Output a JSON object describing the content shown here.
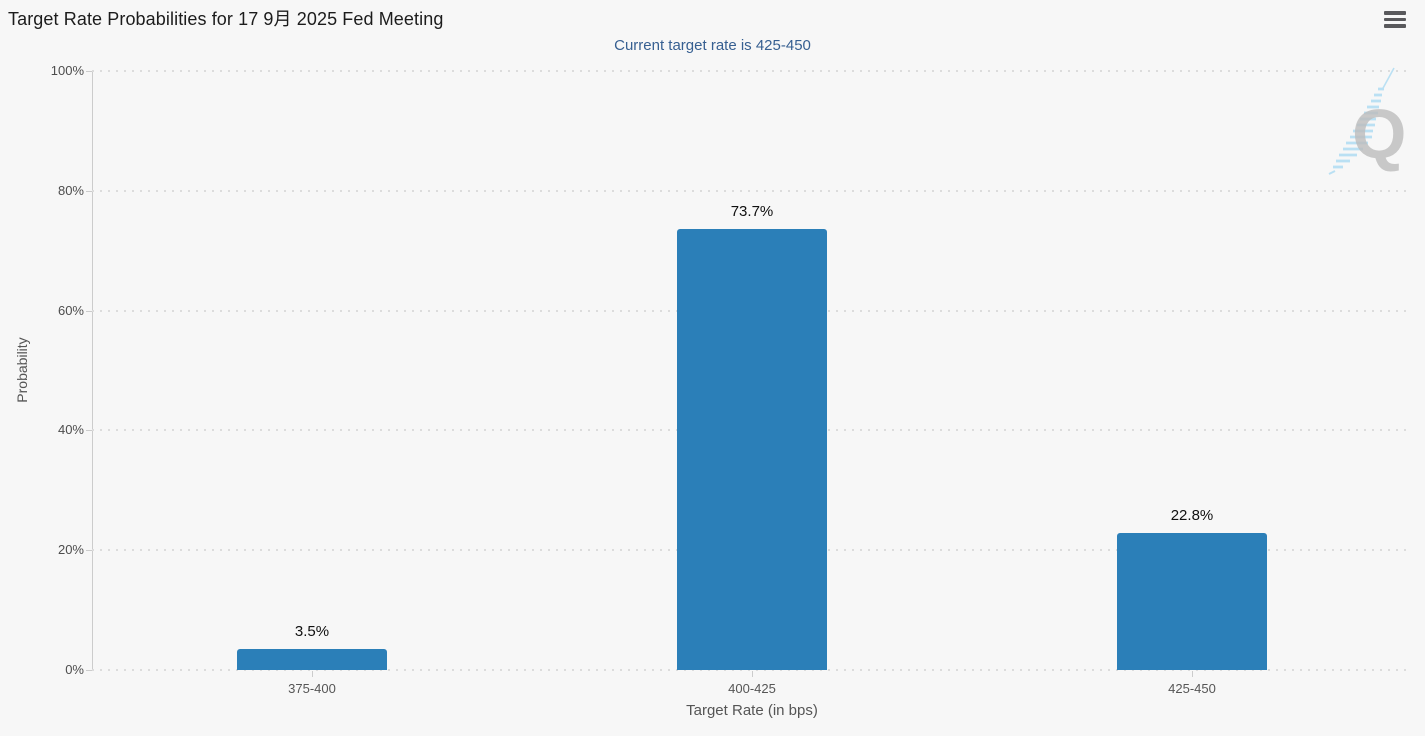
{
  "header": {
    "title": "Target Rate Probabilities for 17 9月 2025 Fed Meeting"
  },
  "menu": {
    "icon": "hamburger-menu-icon"
  },
  "chart_data": {
    "type": "bar",
    "title": "Target Rate Probabilities for 17 9月 2025 Fed Meeting",
    "subtitle": "Current target rate is 425-450",
    "categories": [
      "375-400",
      "400-425",
      "425-450"
    ],
    "values": [
      3.5,
      73.7,
      22.8
    ],
    "value_labels": [
      "3.5%",
      "73.7%",
      "22.8%"
    ],
    "xlabel": "Target Rate (in bps)",
    "ylabel": "Probability",
    "ylim": [
      0,
      100
    ],
    "ytick_labels": [
      "0%",
      "20%",
      "40%",
      "60%",
      "80%",
      "100%"
    ],
    "grid": "horizontal dotted",
    "legend": "none",
    "bar_color": "#2b7fb8",
    "subtitle_color": "#365f91"
  },
  "watermark": {
    "letter": "Q",
    "icon": "quikstrike-logo-watermark"
  }
}
